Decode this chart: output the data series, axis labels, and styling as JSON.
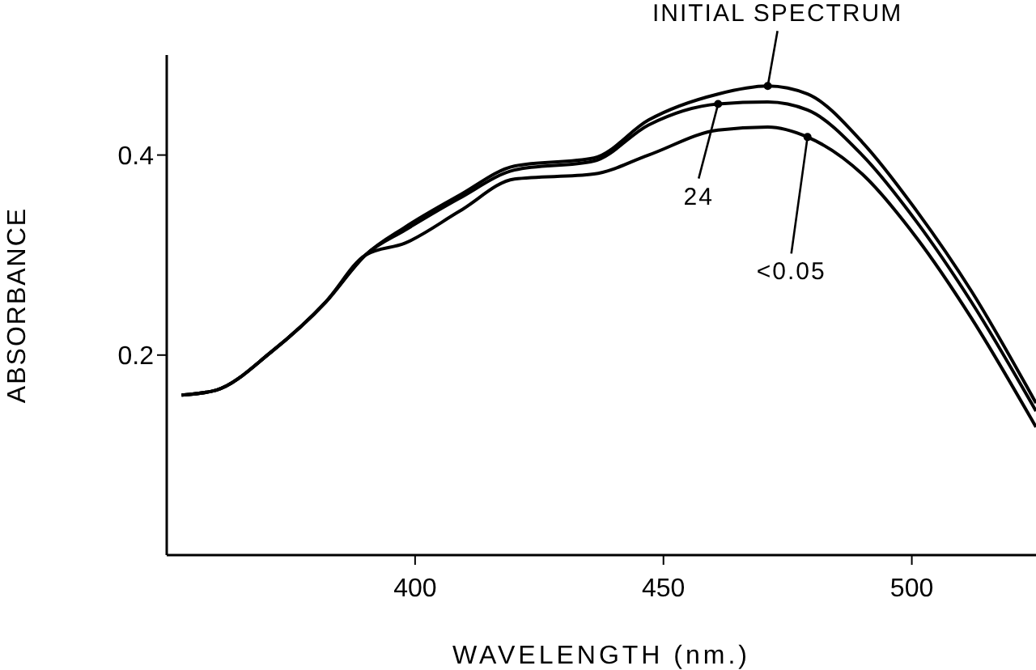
{
  "chart_data": {
    "type": "line",
    "xlabel": "WAVELENGTH (nm.)",
    "ylabel": "ABSORBANCE",
    "x": [
      353,
      360,
      371,
      382,
      390,
      398,
      409,
      420,
      436,
      447,
      461,
      471,
      479,
      490,
      501,
      512,
      525
    ],
    "series": [
      {
        "name": "INITIAL SPECTRUM",
        "color": "#000000",
        "values": [
          0.16,
          0.165,
          0.203,
          0.253,
          0.3,
          0.328,
          0.36,
          0.389,
          0.397,
          0.435,
          0.461,
          0.469,
          0.461,
          0.413,
          0.344,
          0.264,
          0.152
        ]
      },
      {
        "name": "24",
        "color": "#000000",
        "values": [
          0.16,
          0.165,
          0.203,
          0.253,
          0.3,
          0.325,
          0.357,
          0.385,
          0.394,
          0.43,
          0.451,
          0.453,
          0.445,
          0.4,
          0.333,
          0.253,
          0.144
        ]
      },
      {
        "name": "<0.05",
        "color": "#000000",
        "values": [
          0.16,
          0.165,
          0.203,
          0.253,
          0.3,
          0.312,
          0.344,
          0.376,
          0.381,
          0.4,
          0.425,
          0.428,
          0.418,
          0.381,
          0.317,
          0.237,
          0.128
        ]
      }
    ],
    "xlim": [
      350,
      525
    ],
    "xticks": [
      400,
      450,
      500
    ],
    "ylim": [
      0,
      0.5
    ],
    "yticks": [
      0.2,
      0.4
    ]
  }
}
